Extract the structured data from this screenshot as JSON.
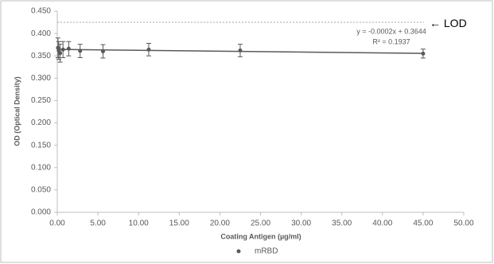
{
  "chart_data": {
    "type": "scatter",
    "x_label": "Coating Antigen (µg/ml)",
    "y_label": "OD (Optical Density)",
    "xlim": [
      0,
      50
    ],
    "xticks": [
      {
        "value": 0,
        "label": "0.00"
      },
      {
        "value": 5,
        "label": "5.00"
      },
      {
        "value": 10,
        "label": "10.00"
      },
      {
        "value": 15,
        "label": "15.00"
      },
      {
        "value": 20,
        "label": "20.00"
      },
      {
        "value": 25,
        "label": "25.00"
      },
      {
        "value": 30,
        "label": "30.00"
      },
      {
        "value": 35,
        "label": "35.00"
      },
      {
        "value": 40,
        "label": "40.00"
      },
      {
        "value": 45,
        "label": "45.00"
      },
      {
        "value": 50,
        "label": "50.00"
      }
    ],
    "ylim": [
      0,
      0.45
    ],
    "yticks": [
      {
        "value": 0,
        "label": "0.000"
      },
      {
        "value": 0.05,
        "label": "0.050"
      },
      {
        "value": 0.1,
        "label": "0.100"
      },
      {
        "value": 0.15,
        "label": "0.150"
      },
      {
        "value": 0.2,
        "label": "0.200"
      },
      {
        "value": 0.25,
        "label": "0.250"
      },
      {
        "value": 0.3,
        "label": "0.300"
      },
      {
        "value": 0.35,
        "label": "0.350"
      },
      {
        "value": 0.4,
        "label": "0.400"
      },
      {
        "value": 0.45,
        "label": "0.450"
      }
    ],
    "series": [
      {
        "name": "mRBD",
        "color": "#595959",
        "x": [
          45,
          22.5,
          11.25,
          5.625,
          2.8125,
          1.40625,
          0.703,
          0.352,
          0.176,
          0.088
        ],
        "values": [
          0.355,
          0.362,
          0.364,
          0.36,
          0.361,
          0.366,
          0.364,
          0.356,
          0.362,
          0.368
        ],
        "errors": [
          0.01,
          0.014,
          0.014,
          0.015,
          0.015,
          0.016,
          0.018,
          0.02,
          0.02,
          0.022
        ]
      }
    ],
    "trendline": {
      "x": [
        0,
        45
      ],
      "values": [
        0.3644,
        0.3554
      ],
      "color": "#595959"
    },
    "trendline_equation": "y = -0.0002x + 0.3644",
    "trendline_r2": "R² = 0.1937",
    "lod": {
      "value": 0.425,
      "label": "← LOD",
      "color": "#a6a6a6"
    },
    "legend": "bottom"
  }
}
